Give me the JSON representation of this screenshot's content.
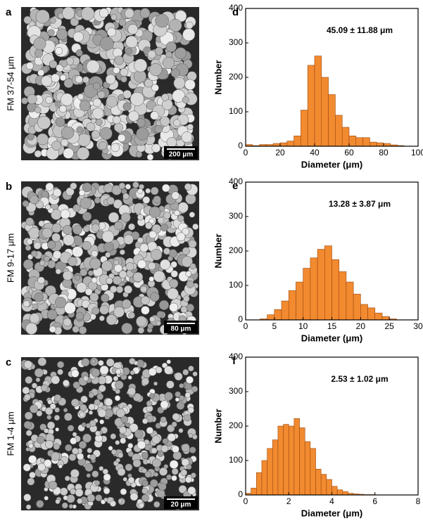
{
  "images": [
    {
      "panel_label": "a",
      "side_label": "FM  37-54 μm",
      "scale_bar": "200 μm"
    },
    {
      "panel_label": "b",
      "side_label": "FM  9-17 μm",
      "scale_bar": "80 μm"
    },
    {
      "panel_label": "c",
      "side_label": "FM  1-4 μm",
      "scale_bar": "20 μm"
    }
  ],
  "chart_data": [
    {
      "type": "histogram",
      "panel_label": "d",
      "annotation": "45.09 ± 11.88 μm",
      "x_label": "Diameter (μm)",
      "y_label": "Number",
      "color": "#f28a30",
      "bins": [
        0,
        4,
        8,
        12,
        16,
        20,
        24,
        28,
        32,
        36,
        40,
        44,
        48,
        52,
        56,
        60,
        64,
        68,
        72,
        76,
        80,
        84,
        88,
        92
      ],
      "values": [
        5,
        2,
        5,
        5,
        8,
        10,
        15,
        30,
        105,
        235,
        262,
        200,
        150,
        90,
        55,
        30,
        25,
        25,
        12,
        10,
        8,
        4,
        2
      ],
      "xlim": [
        0,
        100
      ],
      "xticks": [
        0,
        20,
        40,
        60,
        80,
        100
      ],
      "ylim": [
        0,
        400
      ],
      "yticks": [
        0,
        100,
        200,
        300,
        400
      ]
    },
    {
      "type": "histogram",
      "panel_label": "e",
      "annotation": "13.28 ± 3.87 μm",
      "x_label": "Diameter (μm)",
      "y_label": "Number",
      "color": "#f28a30",
      "bins": [
        2.5,
        3.75,
        5,
        6.25,
        7.5,
        8.75,
        10,
        11.25,
        12.5,
        13.75,
        15,
        16.25,
        17.5,
        18.75,
        20,
        21.25,
        22.5,
        23.75,
        25,
        26.25
      ],
      "values": [
        3,
        15,
        30,
        55,
        85,
        110,
        150,
        180,
        205,
        215,
        175,
        140,
        110,
        75,
        45,
        35,
        20,
        10,
        3
      ],
      "xlim": [
        0,
        30
      ],
      "xticks": [
        0,
        5,
        10,
        15,
        20,
        25,
        30
      ],
      "ylim": [
        0,
        400
      ],
      "yticks": [
        0,
        100,
        200,
        300,
        400
      ]
    },
    {
      "type": "histogram",
      "panel_label": "f",
      "annotation": "2.53 ± 1.02 μm",
      "x_label": "Diameter (μm)",
      "y_label": "Number",
      "color": "#f28a30",
      "bins": [
        0,
        0.25,
        0.5,
        0.75,
        1,
        1.25,
        1.5,
        1.75,
        2,
        2.25,
        2.5,
        2.75,
        3,
        3.25,
        3.5,
        3.75,
        4,
        4.25,
        4.5,
        4.75,
        5,
        5.25,
        5.5,
        5.75,
        6
      ],
      "values": [
        5,
        20,
        65,
        100,
        135,
        160,
        200,
        205,
        200,
        222,
        195,
        155,
        135,
        75,
        60,
        45,
        25,
        15,
        10,
        5,
        3,
        2,
        1,
        1
      ],
      "xlim": [
        0,
        8
      ],
      "xticks": [
        0,
        2,
        4,
        6,
        8
      ],
      "ylim": [
        0,
        400
      ],
      "yticks": [
        0,
        100,
        200,
        300,
        400
      ]
    }
  ]
}
